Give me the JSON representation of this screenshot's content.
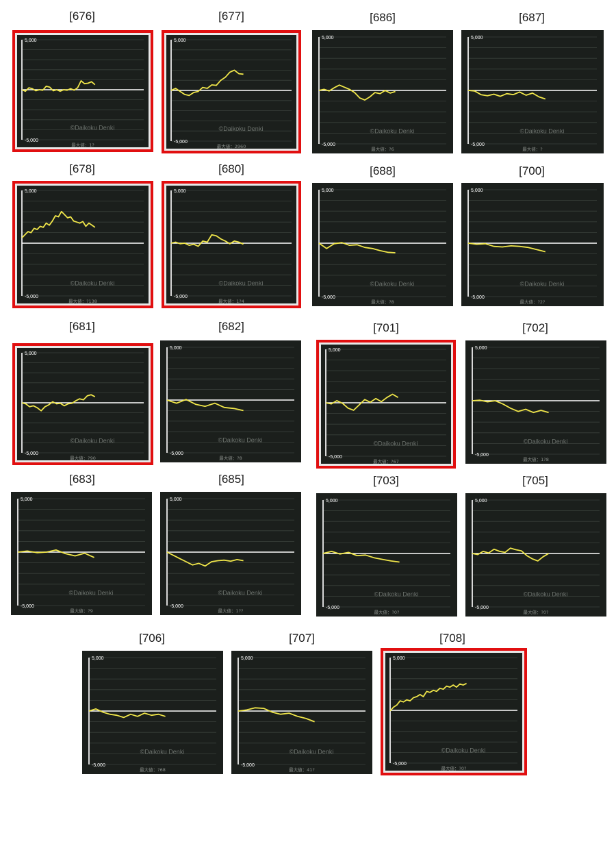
{
  "layout_note": "",
  "colors": {
    "panel_bg": "#1b1f1c",
    "grid": "#3a403b",
    "zero": "#ffffff",
    "line": "#f0e64a",
    "highlight": "#e10f10",
    "watermark": "#6b716c"
  },
  "axis": {
    "top_label": "5,000",
    "bottom_label": "-5,000"
  },
  "watermark": "©Daikoku Denki",
  "chart_data": [
    {
      "type": "line",
      "title": "[676]",
      "highlight": true,
      "footer": "最大値：1?",
      "ylim": [
        -5000,
        5000
      ],
      "values": [
        0,
        -150,
        200,
        100,
        -100,
        0,
        -50,
        350,
        250,
        -100,
        0,
        -150,
        0,
        -50,
        100,
        -50,
        200,
        900,
        600,
        650,
        800,
        500
      ]
    },
    {
      "type": "line",
      "title": "[677]",
      "highlight": true,
      "footer": "最大値：2960",
      "ylim": [
        -5000,
        5000
      ],
      "values": [
        0,
        200,
        -100,
        -400,
        -500,
        -200,
        -100,
        300,
        200,
        550,
        500,
        1000,
        1300,
        1800,
        2000,
        1650,
        1600
      ]
    },
    {
      "type": "line",
      "title": "[686]",
      "highlight": false,
      "footer": "最大値：?6",
      "ylim": [
        -5000,
        5000
      ],
      "values": [
        0,
        100,
        -50,
        250,
        500,
        300,
        100,
        -200,
        -700,
        -900,
        -600,
        -200,
        -300,
        0,
        -250,
        -100
      ]
    },
    {
      "type": "line",
      "title": "[687]",
      "highlight": false,
      "footer": "最大値：?",
      "ylim": [
        -5000,
        5000
      ],
      "values": [
        0,
        -50,
        -400,
        -500,
        -350,
        -550,
        -300,
        -400,
        -150,
        -450,
        -250,
        -600,
        -800
      ]
    },
    {
      "type": "line",
      "title": "[678]",
      "highlight": true,
      "footer": "最大値：?138",
      "ylim": [
        -5000,
        5000
      ],
      "values": [
        500,
        800,
        1100,
        1000,
        1400,
        1300,
        1600,
        1500,
        1900,
        1700,
        2100,
        2600,
        2500,
        3000,
        2700,
        2400,
        2500,
        2100,
        2000,
        1900,
        2050,
        1600,
        1900,
        1700,
        1500
      ]
    },
    {
      "type": "line",
      "title": "[680]",
      "highlight": true,
      "footer": "最大値：1?4",
      "ylim": [
        -5000,
        5000
      ],
      "values": [
        0,
        100,
        -50,
        0,
        -200,
        -100,
        -300,
        200,
        100,
        800,
        700,
        400,
        200,
        -50,
        200,
        100,
        -100
      ]
    },
    {
      "type": "line",
      "title": "[688]",
      "highlight": false,
      "footer": "最大値：?8",
      "ylim": [
        -5000,
        5000
      ],
      "values": [
        0,
        -500,
        -50,
        50,
        -200,
        -150,
        -400,
        -500,
        -700,
        -850,
        -900
      ]
    },
    {
      "type": "line",
      "title": "[700]",
      "highlight": false,
      "footer": "最大値：?2?",
      "ylim": [
        -5000,
        5000
      ],
      "values": [
        0,
        -100,
        -50,
        -300,
        -350,
        -250,
        -300,
        -400,
        -600,
        -800
      ]
    },
    {
      "type": "line",
      "title": "[681]",
      "highlight": true,
      "footer": "最大値：?90",
      "ylim": [
        -5000,
        5000
      ],
      "values": [
        0,
        -100,
        -400,
        -300,
        -500,
        -800,
        -400,
        -200,
        100,
        -100,
        -50,
        -300,
        -100,
        -50,
        200,
        400,
        300,
        700,
        800,
        600
      ]
    },
    {
      "type": "line",
      "title": "[682]",
      "highlight": false,
      "footer": "最大値：?8",
      "ylim": [
        -5000,
        5000
      ],
      "values": [
        0,
        -300,
        50,
        -400,
        -600,
        -300,
        -700,
        -800,
        -1000
      ]
    },
    {
      "type": "line",
      "title": "[701]",
      "highlight": true,
      "footer": "最大値：?67",
      "ylim": [
        -5000,
        5000
      ],
      "values": [
        0,
        -100,
        200,
        -50,
        -500,
        -700,
        -200,
        300,
        50,
        400,
        100,
        500,
        800,
        500
      ]
    },
    {
      "type": "line",
      "title": "[702]",
      "highlight": false,
      "footer": "最大値：1?8",
      "ylim": [
        -5000,
        5000
      ],
      "values": [
        0,
        50,
        -100,
        0,
        -300,
        -700,
        -1000,
        -800,
        -1100,
        -900,
        -1100
      ]
    },
    {
      "type": "line",
      "title": "[683]",
      "highlight": false,
      "footer": "最大値：?9",
      "ylim": [
        -5000,
        5000
      ],
      "values": [
        0,
        100,
        -50,
        0,
        200,
        -150,
        -350,
        -100,
        -500
      ]
    },
    {
      "type": "line",
      "title": "[685]",
      "highlight": false,
      "footer": "最大値：1??",
      "ylim": [
        -5000,
        5000
      ],
      "values": [
        0,
        -300,
        -600,
        -900,
        -1200,
        -1050,
        -1300,
        -900,
        -800,
        -750,
        -850,
        -700,
        -800
      ]
    },
    {
      "type": "line",
      "title": "[703]",
      "highlight": false,
      "footer": "最大値：?0?",
      "ylim": [
        -5000,
        5000
      ],
      "values": [
        0,
        200,
        -50,
        100,
        -200,
        -150,
        -400,
        -550,
        -700,
        -800
      ]
    },
    {
      "type": "line",
      "title": "[705]",
      "highlight": false,
      "footer": "最大値：?0?",
      "ylim": [
        -5000,
        5000
      ],
      "values": [
        0,
        -100,
        200,
        50,
        400,
        200,
        100,
        500,
        350,
        250,
        -200,
        -500,
        -700,
        -300,
        0
      ]
    },
    {
      "type": "line",
      "title": "[706]",
      "highlight": false,
      "footer": "最大値：?68",
      "ylim": [
        -5000,
        5000
      ],
      "values": [
        0,
        200,
        -100,
        -300,
        -400,
        -600,
        -300,
        -500,
        -200,
        -400,
        -300,
        -500
      ]
    },
    {
      "type": "line",
      "title": "[707]",
      "highlight": false,
      "footer": "最大値：41?",
      "ylim": [
        -5000,
        5000
      ],
      "values": [
        0,
        100,
        300,
        250,
        -100,
        -300,
        -200,
        -500,
        -700,
        -1000
      ]
    },
    {
      "type": "line",
      "title": "[708]",
      "highlight": true,
      "footer": "最大値：?0?",
      "ylim": [
        -5000,
        5000
      ],
      "values": [
        -50,
        300,
        500,
        900,
        800,
        1000,
        900,
        1200,
        1300,
        1500,
        1300,
        1800,
        1700,
        1900,
        1800,
        2100,
        2000,
        2300,
        2200,
        2400,
        2200,
        2500,
        2400,
        2550
      ]
    }
  ]
}
